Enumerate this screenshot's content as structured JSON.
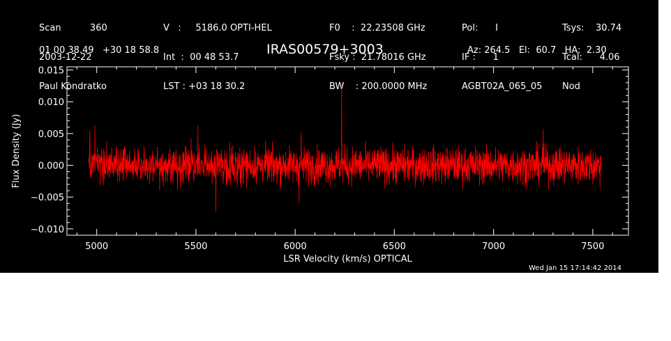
{
  "header": {
    "col1": [
      "Scan          360",
      "2003-12-22",
      "Paul Kondratko"
    ],
    "col2": [
      "V   :     5186.0 OPTI-HEL",
      "Int  :  00 48 53.7",
      "LST : +03 18 30.2"
    ],
    "col3": [
      "F0    :  22.23508 GHz",
      "Fsky :  21.78016 GHz",
      "BW    : 200.0000 MHz"
    ],
    "col4": [
      "Pol:      I",
      "IF :      1",
      "AGBT02A_065_05"
    ],
    "col5": [
      "Tsys:    30.74",
      "Tcal:      4.06",
      "Nod"
    ],
    "coords": "01 00 38.49   +30 18 58.8",
    "source": "IRAS00579+3003",
    "pointing": "Az: 264.5   El:  60.7   HA:  2.30",
    "timestamp": "Wed Jan 15 17:14:42 2014"
  },
  "colors": {
    "background": "#000000",
    "axes": "#ffffff",
    "trace": "#ff0000"
  },
  "chart_data": {
    "type": "line",
    "title": "IRAS00579+3003",
    "xlabel": "LSR Velocity (km/s) OPTICAL",
    "ylabel": "Flux Density (Jy)",
    "xlim": [
      4850,
      7680
    ],
    "ylim": [
      -0.011,
      0.0155
    ],
    "x_ticks": [
      5000,
      5500,
      6000,
      6500,
      7000,
      7500
    ],
    "x_tick_labels": [
      "5000",
      "5500",
      "6000",
      "6500",
      "7000",
      "7500"
    ],
    "y_ticks": [
      -0.01,
      -0.005,
      0.0,
      0.005,
      0.01,
      0.015
    ],
    "y_tick_labels": [
      "−0.010",
      "−0.005",
      "0.000",
      "0.005",
      "0.010",
      "0.015"
    ],
    "series": [
      {
        "color": "#ff0000",
        "x_range": [
          4960,
          7545
        ],
        "noise_rms": 0.002,
        "features": [
          {
            "x": 4965,
            "y": 0.0055
          },
          {
            "x": 4990,
            "y": 0.0063
          },
          {
            "x": 5510,
            "y": 0.0063
          },
          {
            "x": 5600,
            "y": -0.0073
          },
          {
            "x": 6020,
            "y": -0.006
          },
          {
            "x": 6030,
            "y": 0.0052
          },
          {
            "x": 6235,
            "y": 0.0129
          },
          {
            "x": 7250,
            "y": 0.0057
          },
          {
            "x": 7500,
            "y": -0.003
          }
        ]
      }
    ]
  }
}
